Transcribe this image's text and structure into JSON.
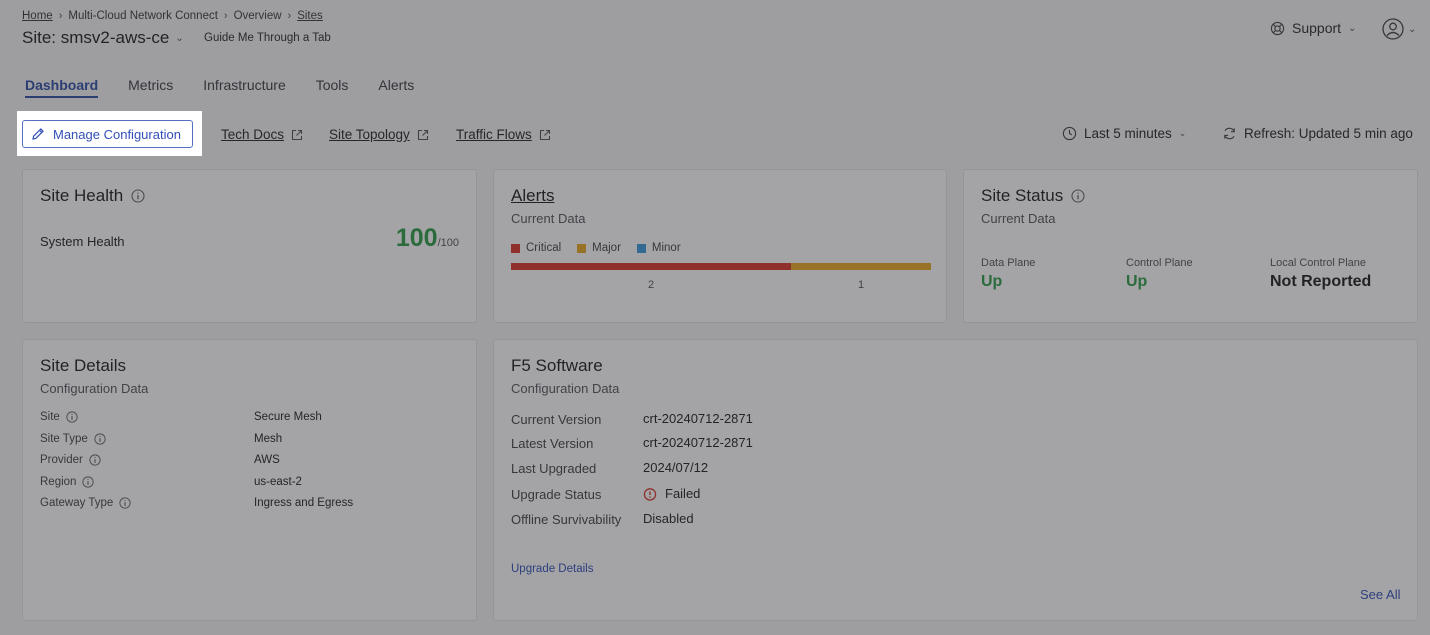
{
  "breadcrumb": {
    "home": "Home",
    "app": "Multi-Cloud Network Connect",
    "overview": "Overview",
    "sites": "Sites"
  },
  "header": {
    "site_title": "Site: smsv2-aws-ce",
    "guide": "Guide Me Through a Tab",
    "support": "Support"
  },
  "tabs": [
    {
      "label": "Dashboard",
      "active": true
    },
    {
      "label": "Metrics"
    },
    {
      "label": "Infrastructure"
    },
    {
      "label": "Tools"
    },
    {
      "label": "Alerts"
    }
  ],
  "toolbar": {
    "manage_config": "Manage Configuration",
    "tech_docs": "Tech Docs",
    "site_topology": "Site Topology",
    "traffic_flows": "Traffic Flows",
    "time_range": "Last 5 minutes",
    "refresh": "Refresh: Updated 5 min ago"
  },
  "site_health": {
    "title": "Site Health",
    "system_health_label": "System Health",
    "score": "100",
    "score_max": "/100"
  },
  "alerts": {
    "title": "Alerts",
    "subtitle": "Current Data",
    "legend": [
      {
        "label": "Critical",
        "color": "#d9362b"
      },
      {
        "label": "Major",
        "color": "#e7a823"
      },
      {
        "label": "Minor",
        "color": "#3a9ad9"
      }
    ],
    "critical_count": "2",
    "major_count": "1",
    "critical_value": 2,
    "major_value": 1
  },
  "site_status": {
    "title": "Site Status",
    "subtitle": "Current Data",
    "data_plane_label": "Data Plane",
    "data_plane_value": "Up",
    "control_plane_label": "Control Plane",
    "control_plane_value": "Up",
    "local_control_plane_label": "Local Control Plane",
    "local_control_plane_value": "Not Reported"
  },
  "site_details": {
    "title": "Site Details",
    "subtitle": "Configuration Data",
    "rows": [
      {
        "label": "Site",
        "value": "Secure Mesh"
      },
      {
        "label": "Site Type",
        "value": "Mesh"
      },
      {
        "label": "Provider",
        "value": "AWS"
      },
      {
        "label": "Region",
        "value": "us-east-2"
      },
      {
        "label": "Gateway Type",
        "value": "Ingress and Egress"
      }
    ]
  },
  "f5_software": {
    "title": "F5 Software",
    "subtitle": "Configuration Data",
    "rows": [
      {
        "label": "Current Version",
        "value": "crt-20240712-2871"
      },
      {
        "label": "Latest Version",
        "value": "crt-20240712-2871"
      },
      {
        "label": "Last Upgraded",
        "value": "2024/07/12"
      },
      {
        "label": "Upgrade Status",
        "value": "Failed"
      },
      {
        "label": "Offline Survivability",
        "value": "Disabled"
      }
    ],
    "upgrade_details": "Upgrade Details",
    "see_all": "See All"
  }
}
